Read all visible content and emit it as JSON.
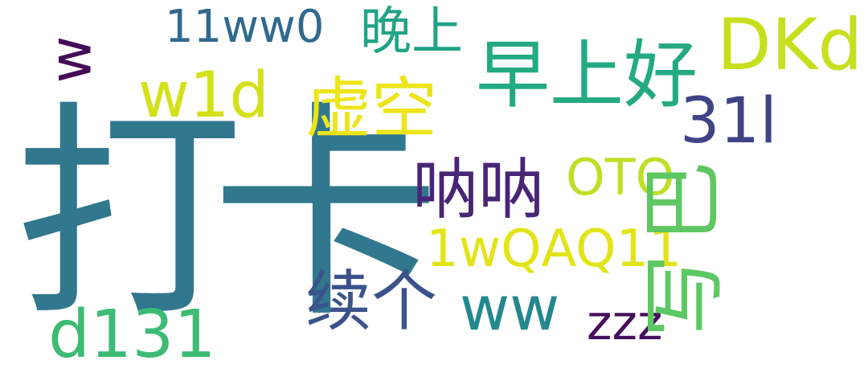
{
  "canvas": {
    "background": "#ffffff"
  },
  "words": [
    {
      "id": "daka",
      "text": "打卡",
      "color": "#31778E"
    },
    {
      "id": "zaoshanghao",
      "text": "早上好",
      "color": "#24AA82"
    },
    {
      "id": "xukong",
      "text": "虚空",
      "color": "#EDE519"
    },
    {
      "id": "nana",
      "text": "呐呐",
      "color": "#482575"
    },
    {
      "id": "xuge",
      "text": "续个",
      "color": "#3B528B"
    },
    {
      "id": "wanshang",
      "text": "晚上",
      "color": "#20A486"
    },
    {
      "id": "dkd",
      "text": "DKd",
      "color": "#C8DF1E"
    },
    {
      "id": "11ww0",
      "text": "11ww0",
      "color": "#30698E"
    },
    {
      "id": "w1d",
      "text": "w1d",
      "color": "#D4E11A"
    },
    {
      "id": "31l",
      "text": "31l",
      "color": "#404387"
    },
    {
      "id": "oto",
      "text": "OTO",
      "color": "#BDDF26"
    },
    {
      "id": "1wqaq11",
      "text": "1wQAQ11",
      "color": "#E2E418"
    },
    {
      "id": "ww",
      "text": "ww",
      "color": "#23888E"
    },
    {
      "id": "zzz",
      "text": "zzz",
      "color": "#450F5C"
    },
    {
      "id": "d131",
      "text": "d131",
      "color": "#3DBB74"
    },
    {
      "id": "w_rot",
      "text": "w",
      "color": "#440C56"
    },
    {
      "id": "ba",
      "text": "巴",
      "color": "#5EC762"
    },
    {
      "id": "xie",
      "text": "写",
      "color": "#5CC863"
    }
  ]
}
